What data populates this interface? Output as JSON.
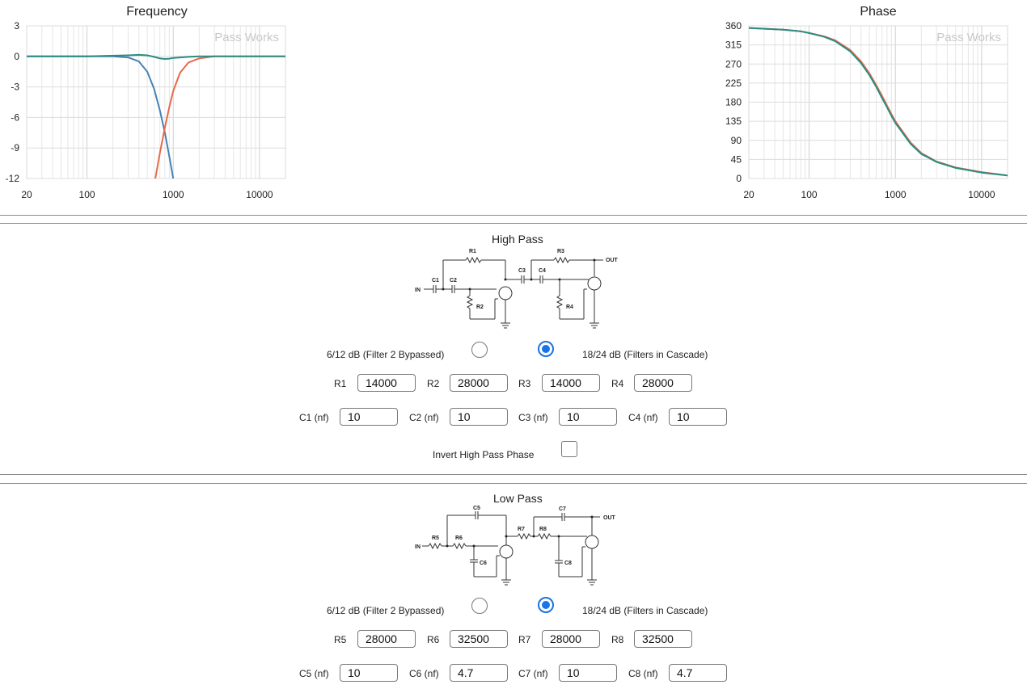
{
  "frequency_chart": {
    "title": "Frequency",
    "watermark": "Pass Works",
    "chart_data": {
      "type": "line",
      "title": "Frequency",
      "x_scale": "log",
      "xlim": [
        20,
        20000
      ],
      "ylim": [
        -12,
        3
      ],
      "x_ticks": [
        "20",
        "100",
        "1000",
        "10000"
      ],
      "y_ticks": [
        "3",
        "0",
        "-3",
        "-6",
        "-9",
        "-12"
      ],
      "grid": true,
      "series": [
        {
          "color": "#4682b4",
          "x": [
            20,
            100,
            200,
            300,
            400,
            500,
            600,
            700,
            800,
            900,
            1000
          ],
          "y": [
            0,
            0,
            0,
            -0.1,
            -0.5,
            -1.5,
            -3.2,
            -5.3,
            -7.5,
            -9.8,
            -12
          ]
        },
        {
          "color": "#e8694a",
          "x": [
            620,
            700,
            800,
            900,
            1000,
            1200,
            1500,
            2000,
            3000,
            5000,
            20000
          ],
          "y": [
            -12,
            -9.5,
            -7,
            -5,
            -3.4,
            -1.6,
            -0.6,
            -0.2,
            0,
            0,
            0
          ]
        },
        {
          "color": "#2a8c82",
          "x": [
            20,
            100,
            300,
            400,
            500,
            600,
            700,
            800,
            900,
            1000,
            1500,
            2000,
            3000,
            20000
          ],
          "y": [
            0,
            0,
            0.1,
            0.15,
            0.1,
            -0.05,
            -0.2,
            -0.25,
            -0.22,
            -0.15,
            -0.05,
            0,
            0,
            0
          ]
        }
      ]
    }
  },
  "phase_chart": {
    "title": "Phase",
    "watermark": "Pass Works",
    "chart_data": {
      "type": "line",
      "title": "Phase",
      "x_scale": "log",
      "xlim": [
        20,
        20000
      ],
      "ylim": [
        0,
        360
      ],
      "x_ticks": [
        "20",
        "100",
        "1000",
        "10000"
      ],
      "y_ticks": [
        "360",
        "315",
        "270",
        "225",
        "180",
        "135",
        "90",
        "45",
        "0"
      ],
      "grid": true,
      "series": [
        {
          "color": "#e8694a",
          "x": [
            20,
            50,
            80,
            100,
            150,
            200,
            300,
            400,
            500,
            600,
            700,
            800,
            900,
            1000,
            1500,
            2000,
            3000,
            5000,
            10000,
            20000
          ],
          "y": [
            355,
            351,
            347,
            343,
            335,
            326,
            303,
            276,
            248,
            220,
            195,
            172,
            152,
            135,
            85,
            60,
            40,
            26,
            15,
            7
          ]
        },
        {
          "color": "#2a8c82",
          "x": [
            20,
            50,
            80,
            100,
            150,
            200,
            300,
            400,
            500,
            600,
            700,
            800,
            900,
            1000,
            1500,
            2000,
            3000,
            5000,
            10000,
            20000
          ],
          "y": [
            355,
            351,
            347,
            343,
            334,
            324,
            300,
            272,
            244,
            216,
            190,
            168,
            148,
            131,
            82,
            58,
            39,
            25,
            14,
            7
          ]
        }
      ]
    }
  },
  "high_pass": {
    "title": "High Pass",
    "schematic_labels": {
      "r1": "R1",
      "r2": "R2",
      "r3": "R3",
      "r4": "R4",
      "c1": "C1",
      "c2": "C2",
      "c3": "C3",
      "c4": "C4",
      "in": "IN",
      "out": "OUT"
    },
    "option_bypassed": "6/12 dB (Filter 2 Bypassed)",
    "option_cascade": "18/24 dB (Filters in Cascade)",
    "selected_option": "cascade",
    "r_fields": [
      {
        "label": "R1",
        "value": "14000"
      },
      {
        "label": "R2",
        "value": "28000"
      },
      {
        "label": "R3",
        "value": "14000"
      },
      {
        "label": "R4",
        "value": "28000"
      }
    ],
    "c_fields": [
      {
        "label": "C1 (nf)",
        "value": "10"
      },
      {
        "label": "C2 (nf)",
        "value": "10"
      },
      {
        "label": "C3 (nf)",
        "value": "10"
      },
      {
        "label": "C4 (nf)",
        "value": "10"
      }
    ],
    "invert_label": "Invert High Pass Phase",
    "invert_checked": false
  },
  "low_pass": {
    "title": "Low Pass",
    "schematic_labels": {
      "r5": "R5",
      "r6": "R6",
      "r7": "R7",
      "r8": "R8",
      "c5": "C5",
      "c6": "C6",
      "c7": "C7",
      "c8": "C8",
      "in": "IN",
      "out": "OUT"
    },
    "option_bypassed": "6/12 dB (Filter 2 Bypassed)",
    "option_cascade": "18/24 dB (Filters in Cascade)",
    "selected_option": "cascade",
    "r_fields": [
      {
        "label": "R5",
        "value": "28000"
      },
      {
        "label": "R6",
        "value": "32500"
      },
      {
        "label": "R7",
        "value": "28000"
      },
      {
        "label": "R8",
        "value": "32500"
      }
    ],
    "c_fields": [
      {
        "label": "C5 (nf)",
        "value": "10"
      },
      {
        "label": "C6 (nf)",
        "value": "4.7"
      },
      {
        "label": "C7 (nf)",
        "value": "10"
      },
      {
        "label": "C8 (nf)",
        "value": "4.7"
      }
    ]
  }
}
